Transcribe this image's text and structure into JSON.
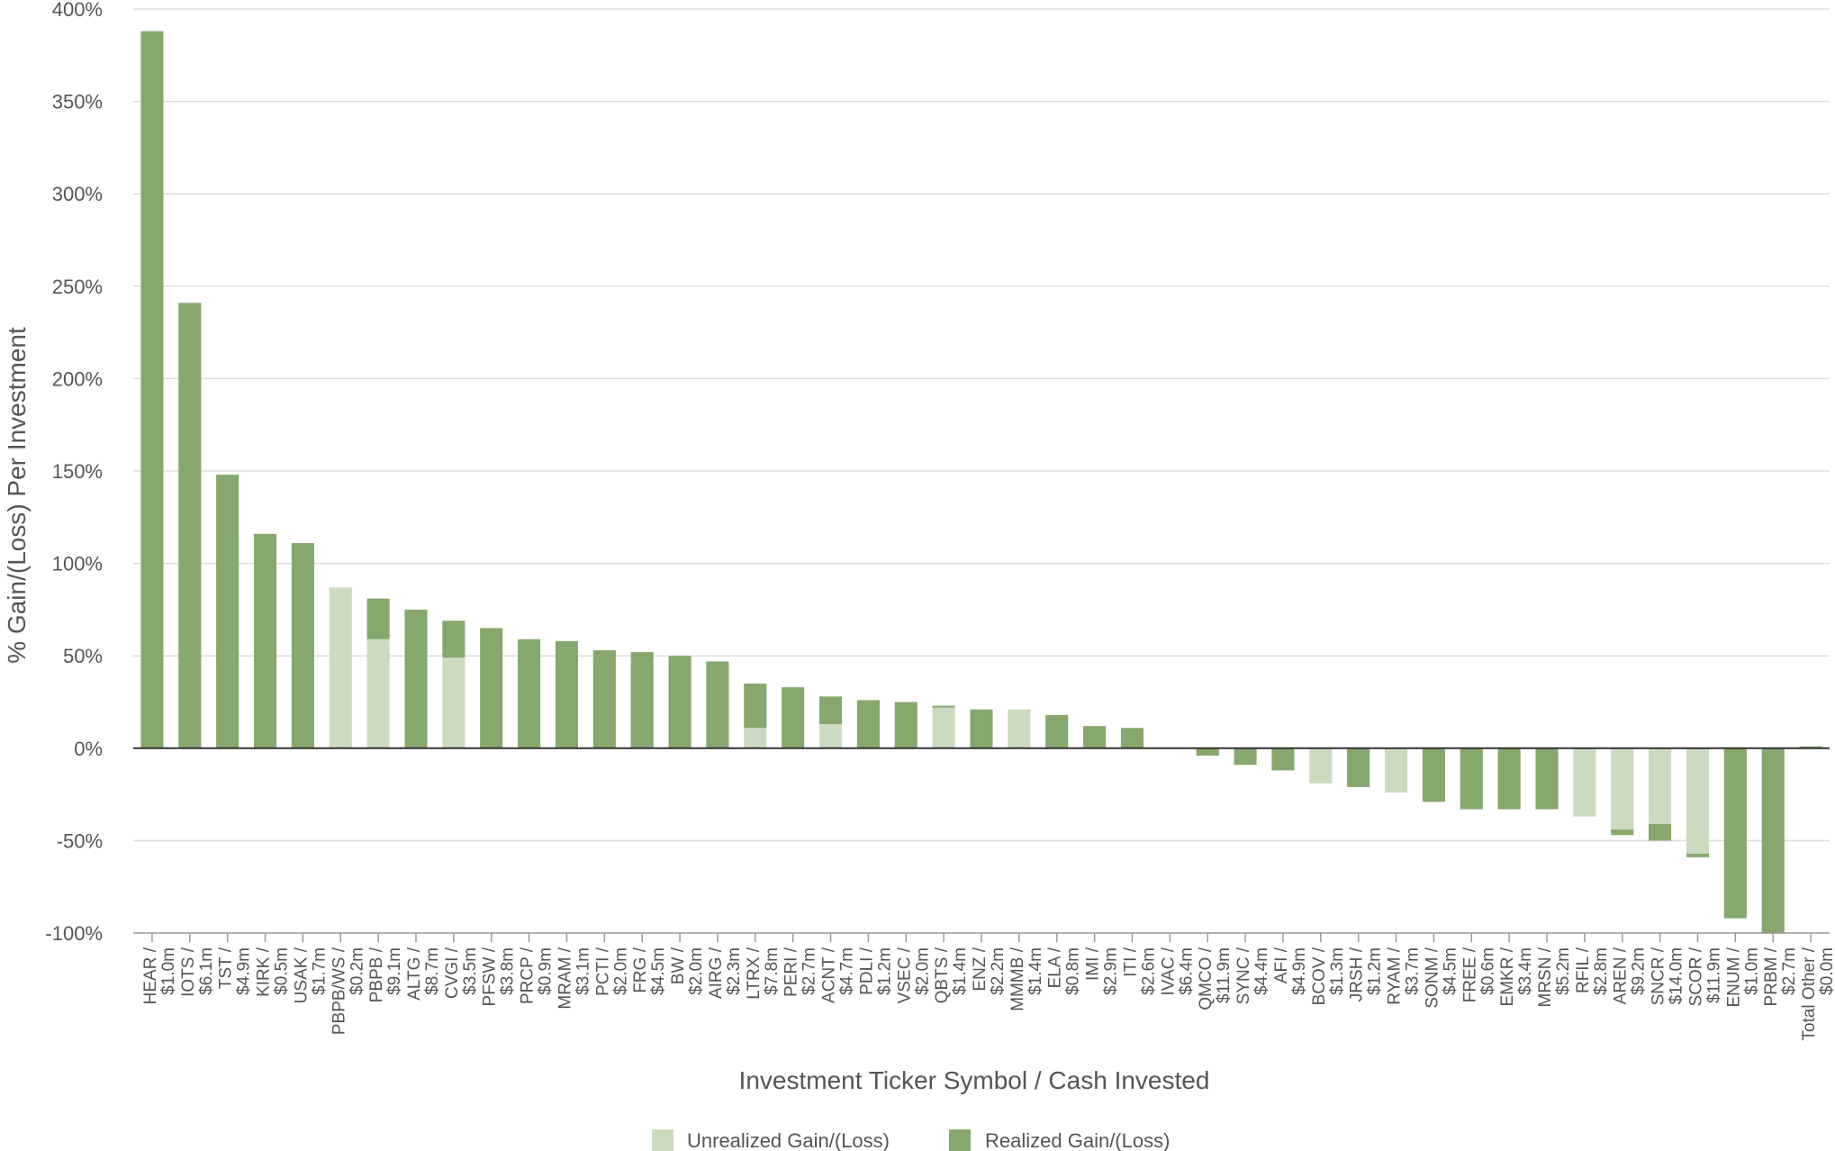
{
  "chart_data": {
    "type": "bar",
    "stacked": true,
    "xlabel": "Investment Ticker Symbol / Cash Invested",
    "ylabel": "% Gain/(Loss) Per Investment",
    "ylim": [
      -100,
      400
    ],
    "yticks": [
      -100,
      -50,
      0,
      50,
      100,
      150,
      200,
      250,
      300,
      350,
      400
    ],
    "ytick_labels": [
      "-100%",
      "-50%",
      "0%",
      "50%",
      "100%",
      "150%",
      "200%",
      "250%",
      "300%",
      "350%",
      "400%"
    ],
    "grid": true,
    "legend_position": "bottom",
    "colors": {
      "unrealized": "#cbdbc0",
      "realized": "#86a86c",
      "grid": "#dddddd",
      "zero_line": "#333333",
      "text": "#555555"
    },
    "categories": [
      [
        "HEAR /",
        "$1.0m"
      ],
      [
        "IOTS /",
        "$6.1m"
      ],
      [
        "TST /",
        "$4.9m"
      ],
      [
        "KIRK /",
        "$0.5m"
      ],
      [
        "USAK /",
        "$1.7m"
      ],
      [
        "PBPB/WS /",
        "$0.2m"
      ],
      [
        "PBPB /",
        "$9.1m"
      ],
      [
        "ALTG /",
        "$8.7m"
      ],
      [
        "CVGI /",
        "$3.5m"
      ],
      [
        "PFSW /",
        "$3.8m"
      ],
      [
        "PRCP /",
        "$0.9m"
      ],
      [
        "MRAM /",
        "$3.1m"
      ],
      [
        "PCTI /",
        "$2.0m"
      ],
      [
        "FRG /",
        "$4.5m"
      ],
      [
        "BW /",
        "$2.0m"
      ],
      [
        "AIRG /",
        "$2.3m"
      ],
      [
        "LTRX /",
        "$7.8m"
      ],
      [
        "PERI /",
        "$2.7m"
      ],
      [
        "ACNT /",
        "$4.7m"
      ],
      [
        "PDLI /",
        "$1.2m"
      ],
      [
        "VSEC /",
        "$2.0m"
      ],
      [
        "QBTS /",
        "$1.4m"
      ],
      [
        "ENZ /",
        "$2.2m"
      ],
      [
        "MMMB /",
        "$1.4m"
      ],
      [
        "ELA /",
        "$0.8m"
      ],
      [
        "IMI /",
        "$2.9m"
      ],
      [
        "ITI /",
        "$2.6m"
      ],
      [
        "IVAC /",
        "$6.4m"
      ],
      [
        "QMCO /",
        "$11.9m"
      ],
      [
        "SYNC /",
        "$4.4m"
      ],
      [
        "AFI /",
        "$4.9m"
      ],
      [
        "BCOV /",
        "$1.3m"
      ],
      [
        "JRSH /",
        "$1.2m"
      ],
      [
        "RYAM /",
        "$3.7m"
      ],
      [
        "SONM /",
        "$4.5m"
      ],
      [
        "FREE /",
        "$0.6m"
      ],
      [
        "EMKR /",
        "$3.4m"
      ],
      [
        "MRSN /",
        "$5.2m"
      ],
      [
        "RFIL /",
        "$2.8m"
      ],
      [
        "AREN /",
        "$9.2m"
      ],
      [
        "SNCR /",
        "$14.0m"
      ],
      [
        "SCOR /",
        "$11.9m"
      ],
      [
        "ENUM /",
        "$1.0m"
      ],
      [
        "PRBM /",
        "$2.7m"
      ],
      [
        "Total Other /",
        "$0.0m"
      ]
    ],
    "series": [
      {
        "name": "Unrealized Gain/(Loss)",
        "values": [
          0,
          0,
          0,
          0,
          0,
          87,
          59,
          0,
          49,
          0,
          0,
          0,
          0,
          0,
          0,
          0,
          11,
          0,
          13,
          0,
          0,
          22,
          0,
          21,
          0,
          0,
          0,
          0,
          0,
          0,
          0,
          -19,
          0,
          -24,
          0,
          0,
          0,
          0,
          -37,
          -44,
          -41,
          -57,
          0,
          0,
          0
        ]
      },
      {
        "name": "Realized Gain/(Loss)",
        "values": [
          388,
          241,
          148,
          116,
          111,
          0,
          22,
          75,
          20,
          65,
          59,
          58,
          53,
          52,
          50,
          47,
          24,
          33,
          15,
          26,
          25,
          1,
          21,
          0,
          18,
          12,
          11,
          0,
          -4,
          -9,
          -12,
          0,
          -21,
          0,
          -29,
          -33,
          -33,
          -33,
          0,
          -3,
          -9,
          -2,
          -92,
          -100,
          1
        ]
      }
    ]
  }
}
